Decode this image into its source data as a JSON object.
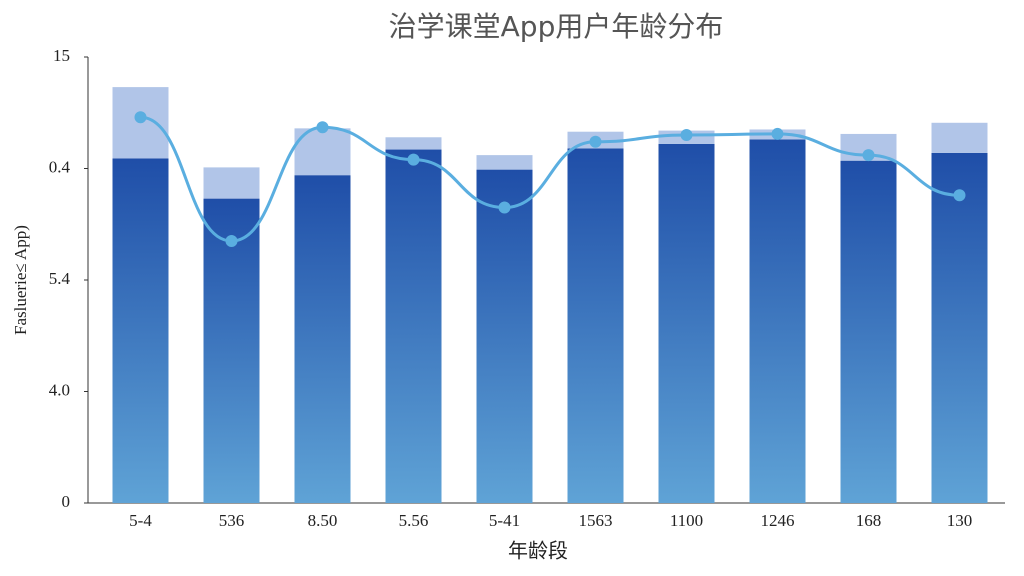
{
  "chart_data": {
    "type": "bar-line",
    "title": "治学课堂App用户年龄分布",
    "x_label": "年龄段",
    "y_label": "Fasluerie≤ App)",
    "categories": [
      "5-4",
      "536",
      "8.50",
      "5.56",
      "5-41",
      "1563",
      "1100",
      "1246",
      "168",
      "130"
    ],
    "stacked": true,
    "series": [
      {
        "color": "#2353ad",
        "values": [
          3.09,
          2.73,
          2.94,
          3.17,
          2.99,
          3.18,
          3.22,
          3.26,
          3.07,
          3.14
        ]
      },
      {
        "color": "#a9bfe6",
        "values": [
          0.64,
          0.28,
          0.42,
          0.11,
          0.13,
          0.15,
          0.12,
          0.09,
          0.24,
          0.27
        ]
      },
      {
        "type": "line",
        "color": "#5aaee0",
        "values": [
          3.46,
          2.35,
          3.37,
          3.08,
          2.65,
          3.24,
          3.3,
          3.31,
          3.12,
          2.76
        ]
      }
    ],
    "ylim": [
      0,
      4
    ],
    "yticks": [
      {
        "value": 0,
        "label": "0"
      },
      {
        "value": 1,
        "label": "4.0"
      },
      {
        "value": 2,
        "label": "5.4"
      },
      {
        "value": 3,
        "label": "0.4"
      },
      {
        "value": 4,
        "label": "15"
      }
    ],
    "grid": false
  }
}
